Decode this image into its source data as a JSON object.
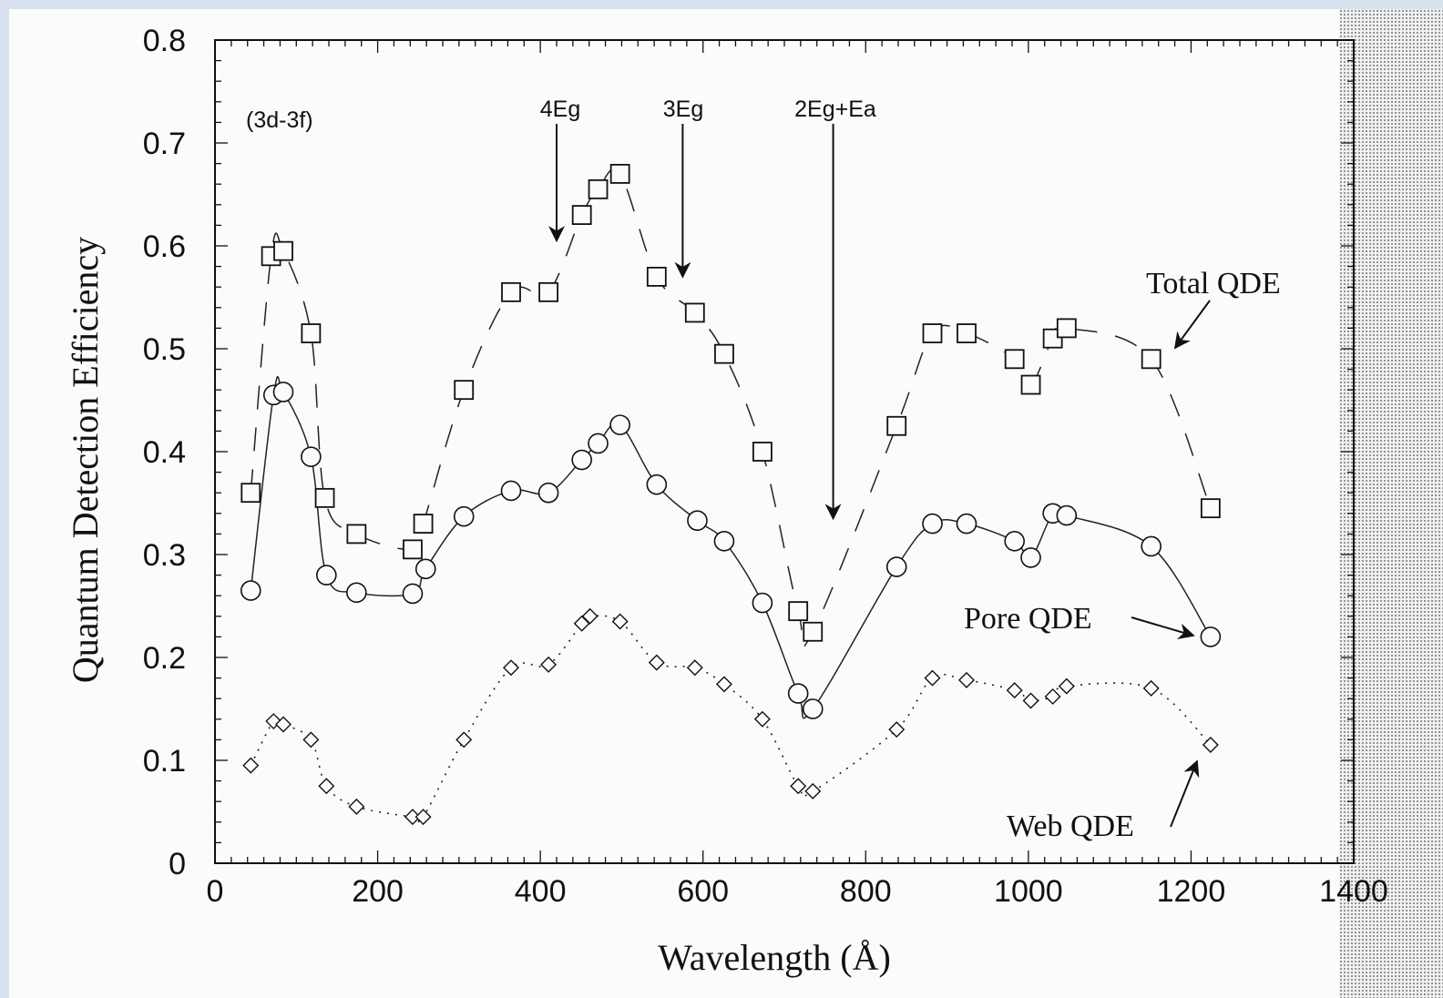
{
  "chart_data": {
    "type": "line",
    "title": "",
    "xlabel": "Wavelength (Å)",
    "ylabel": "Quantum Detection Efficiency",
    "xlim": [
      0,
      1400
    ],
    "ylim": [
      0,
      0.8
    ],
    "xticks": [
      0,
      200,
      400,
      600,
      800,
      1000,
      1200,
      1400
    ],
    "yticks": [
      0,
      0.1,
      0.2,
      0.3,
      0.4,
      0.5,
      0.6,
      0.7,
      0.8
    ],
    "xtick_labels": [
      "0",
      "200",
      "400",
      "600",
      "800",
      "1000",
      "1200",
      "1400"
    ],
    "ytick_labels": [
      "0",
      "0.1",
      "0.2",
      "0.3",
      "0.4",
      "0.5",
      "0.6",
      "0.7",
      "0.8"
    ],
    "grid": false,
    "series": [
      {
        "name": "Total QDE",
        "marker": "square",
        "line_style": "dashed",
        "x": [
          44,
          69,
          84,
          118,
          135,
          174,
          243,
          256,
          306,
          364,
          410,
          451,
          471,
          498,
          543,
          590,
          626,
          673,
          717,
          735,
          838,
          882,
          924,
          983,
          1003,
          1030,
          1047,
          1151,
          1224
        ],
        "y": [
          0.36,
          0.59,
          0.595,
          0.515,
          0.355,
          0.32,
          0.305,
          0.33,
          0.46,
          0.555,
          0.555,
          0.63,
          0.655,
          0.67,
          0.57,
          0.535,
          0.495,
          0.4,
          0.245,
          0.225,
          0.425,
          0.515,
          0.515,
          0.49,
          0.465,
          0.51,
          0.52,
          0.49,
          0.345
        ]
      },
      {
        "name": "Pore QDE",
        "marker": "circle",
        "line_style": "solid",
        "x": [
          44,
          72,
          84,
          118,
          137,
          174,
          243,
          259,
          306,
          364,
          410,
          451,
          471,
          498,
          543,
          593,
          626,
          673,
          717,
          735,
          838,
          882,
          924,
          983,
          1003,
          1030,
          1047,
          1151,
          1224
        ],
        "y": [
          0.265,
          0.455,
          0.458,
          0.395,
          0.28,
          0.263,
          0.262,
          0.286,
          0.337,
          0.362,
          0.36,
          0.392,
          0.408,
          0.426,
          0.368,
          0.333,
          0.313,
          0.253,
          0.165,
          0.15,
          0.288,
          0.33,
          0.33,
          0.313,
          0.297,
          0.34,
          0.338,
          0.308,
          0.22
        ]
      },
      {
        "name": "Web QDE",
        "marker": "diamond",
        "line_style": "dotted",
        "x": [
          44,
          72,
          84,
          118,
          137,
          174,
          243,
          256,
          306,
          364,
          410,
          451,
          461,
          498,
          543,
          590,
          626,
          673,
          717,
          735,
          838,
          882,
          924,
          983,
          1003,
          1030,
          1047,
          1151,
          1224
        ],
        "y": [
          0.095,
          0.138,
          0.135,
          0.12,
          0.075,
          0.055,
          0.045,
          0.045,
          0.12,
          0.19,
          0.193,
          0.233,
          0.24,
          0.235,
          0.195,
          0.19,
          0.174,
          0.14,
          0.075,
          0.07,
          0.13,
          0.18,
          0.178,
          0.168,
          0.158,
          0.162,
          0.172,
          0.17,
          0.115
        ]
      }
    ],
    "panel_label": "(3d-3f)",
    "annotations": [
      {
        "text": "4Eg",
        "x": 420,
        "arrow_tip_y": 0.605
      },
      {
        "text": "3Eg",
        "x": 575,
        "arrow_tip_y": 0.57
      },
      {
        "text": "2Eg+Ea",
        "x": 760,
        "arrow_tip_y": 0.335
      }
    ],
    "series_labels": {
      "total": "Total QDE",
      "pore": "Pore QDE",
      "web": "Web QDE"
    }
  }
}
